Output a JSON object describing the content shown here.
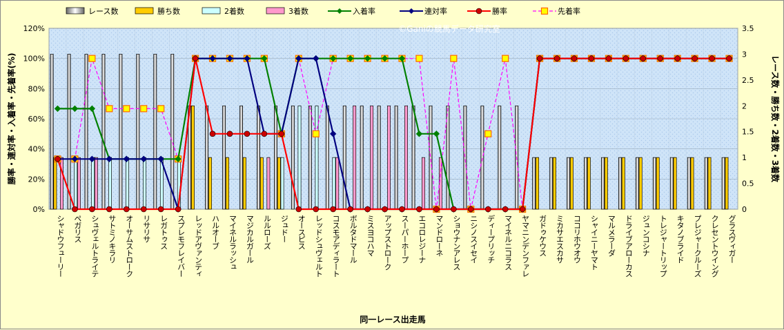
{
  "chart_data": {
    "type": "bar",
    "xlabel": "同一レース出走馬",
    "ylabel_left": "勝率・連対率・入着率・先着率(%)",
    "ylabel_right": "レース数・勝ち数・2着数・3着数",
    "watermark": "©Ganiの競馬データ研究室",
    "ylim_left": [
      0,
      120
    ],
    "yticks_left": [
      "0%",
      "20%",
      "40%",
      "60%",
      "80%",
      "100%",
      "120%"
    ],
    "ylim_right": [
      0,
      3.5
    ],
    "yticks_right": [
      "0",
      "0.5",
      "1",
      "1.5",
      "2",
      "2.5",
      "3",
      "3.5"
    ],
    "categories": [
      "シャドウフューリー",
      "ペガリス",
      "シュヴェルトライテ",
      "サトミノキラリ",
      "オーサムストローク",
      "リサリサ",
      "レガトゥス",
      "スプレモフレイバー",
      "レッドアヴァンティ",
      "ハルオーブ",
      "マイネルラッシュ",
      "マジカルガール",
      "ルルローズ",
      "ジュドー",
      "オースピス",
      "レッドシュヴェルト",
      "コスモアディラート",
      "ボルタドマール",
      "ミスヨコハマ",
      "アップストローク",
      "スーパーホープ",
      "エコロレジーナ",
      "マンドローネ",
      "ショウナンアレス",
      "ニシノスイセイ",
      "ディープリッチ",
      "マイネルニコラス",
      "ヤマニンデンファレ",
      "ガドゥケウス",
      "ミカサエスカサ",
      "ココリホウオウ",
      "シャイニーヤマト",
      "マルメラーダ",
      "ドライブアローカス",
      "ジュンコシナ",
      "トレジャートリップ",
      "キタノブライド",
      "プレジャークルーズ",
      "クレセントウイング",
      "グラスヴィガー"
    ],
    "series": [
      {
        "name": "レース数",
        "kind": "bar",
        "axis": "right",
        "color": "#ffffff",
        "values": [
          3,
          3,
          3,
          3,
          3,
          3,
          3,
          3,
          2,
          2,
          2,
          2,
          2,
          2,
          2,
          2,
          2,
          2,
          2,
          2,
          2,
          2,
          2,
          2,
          2,
          2,
          2,
          2,
          1,
          1,
          1,
          1,
          1,
          1,
          1,
          1,
          1,
          1,
          1,
          1
        ]
      },
      {
        "name": "勝ち数",
        "kind": "bar",
        "axis": "right",
        "color": "#ffcc00",
        "values": [
          1,
          0,
          0,
          0,
          0,
          0,
          0,
          0,
          2,
          1,
          1,
          1,
          1,
          1,
          0,
          0,
          0,
          0,
          0,
          0,
          0,
          0,
          0,
          0,
          0,
          0,
          0,
          0,
          1,
          1,
          1,
          1,
          1,
          1,
          1,
          1,
          1,
          1,
          1,
          1
        ]
      },
      {
        "name": "2着数",
        "kind": "bar",
        "axis": "right",
        "color": "#ccffff",
        "values": [
          0,
          1,
          1,
          1,
          1,
          1,
          1,
          1,
          0,
          0,
          0,
          0,
          0,
          1,
          2,
          2,
          1,
          0,
          0,
          0,
          0,
          0,
          0,
          0,
          0,
          0,
          0,
          0,
          0,
          0,
          0,
          0,
          0,
          0,
          0,
          0,
          0,
          0,
          0,
          0
        ]
      },
      {
        "name": "3着数",
        "kind": "bar",
        "axis": "right",
        "color": "#ff99cc",
        "values": [
          1,
          1,
          1,
          0,
          0,
          0,
          0,
          0,
          0,
          0,
          0,
          0,
          1,
          0,
          0,
          0,
          1,
          2,
          2,
          2,
          2,
          1,
          1,
          0,
          0,
          0,
          0,
          0,
          0,
          0,
          0,
          0,
          0,
          0,
          0,
          0,
          0,
          0,
          0,
          0
        ]
      },
      {
        "name": "入着率",
        "kind": "line",
        "axis": "left",
        "color": "#008000",
        "marker": "diamond",
        "dash": false,
        "values": [
          66.7,
          66.7,
          66.7,
          33.3,
          33.3,
          33.3,
          33.3,
          33.3,
          100,
          100,
          100,
          100,
          100,
          50,
          100,
          100,
          100,
          100,
          100,
          100,
          100,
          50,
          50,
          0,
          0,
          0,
          0,
          0,
          100,
          100,
          100,
          100,
          100,
          100,
          100,
          100,
          100,
          100,
          100,
          100
        ]
      },
      {
        "name": "連対率",
        "kind": "line",
        "axis": "left",
        "color": "#000080",
        "marker": "diamond",
        "dash": false,
        "values": [
          33.3,
          33.3,
          33.3,
          33.3,
          33.3,
          33.3,
          33.3,
          0,
          100,
          100,
          100,
          100,
          50,
          50,
          100,
          100,
          50,
          0,
          0,
          0,
          0,
          0,
          0,
          0,
          0,
          0,
          0,
          0,
          100,
          100,
          100,
          100,
          100,
          100,
          100,
          100,
          100,
          100,
          100,
          100
        ]
      },
      {
        "name": "勝率",
        "kind": "line",
        "axis": "left",
        "color": "#ff0000",
        "marker": "circle",
        "dash": false,
        "values": [
          33.3,
          0,
          0,
          0,
          0,
          0,
          0,
          0,
          100,
          50,
          50,
          50,
          50,
          50,
          0,
          0,
          0,
          0,
          0,
          0,
          0,
          0,
          0,
          0,
          0,
          0,
          0,
          0,
          100,
          100,
          100,
          100,
          100,
          100,
          100,
          100,
          100,
          100,
          100,
          100
        ]
      },
      {
        "name": "先着率",
        "kind": "line",
        "axis": "left",
        "color": "#ff00ff",
        "marker": "square",
        "dash": true,
        "values": [
          33.3,
          33.3,
          100,
          66.7,
          66.7,
          66.7,
          66.7,
          33.3,
          100,
          100,
          100,
          100,
          100,
          50,
          100,
          50,
          100,
          100,
          100,
          100,
          100,
          100,
          0,
          100,
          0,
          50,
          100,
          0,
          100,
          100,
          100,
          100,
          100,
          100,
          100,
          100,
          100,
          100,
          100,
          100
        ]
      }
    ],
    "legend_position": "top",
    "grid": true
  }
}
